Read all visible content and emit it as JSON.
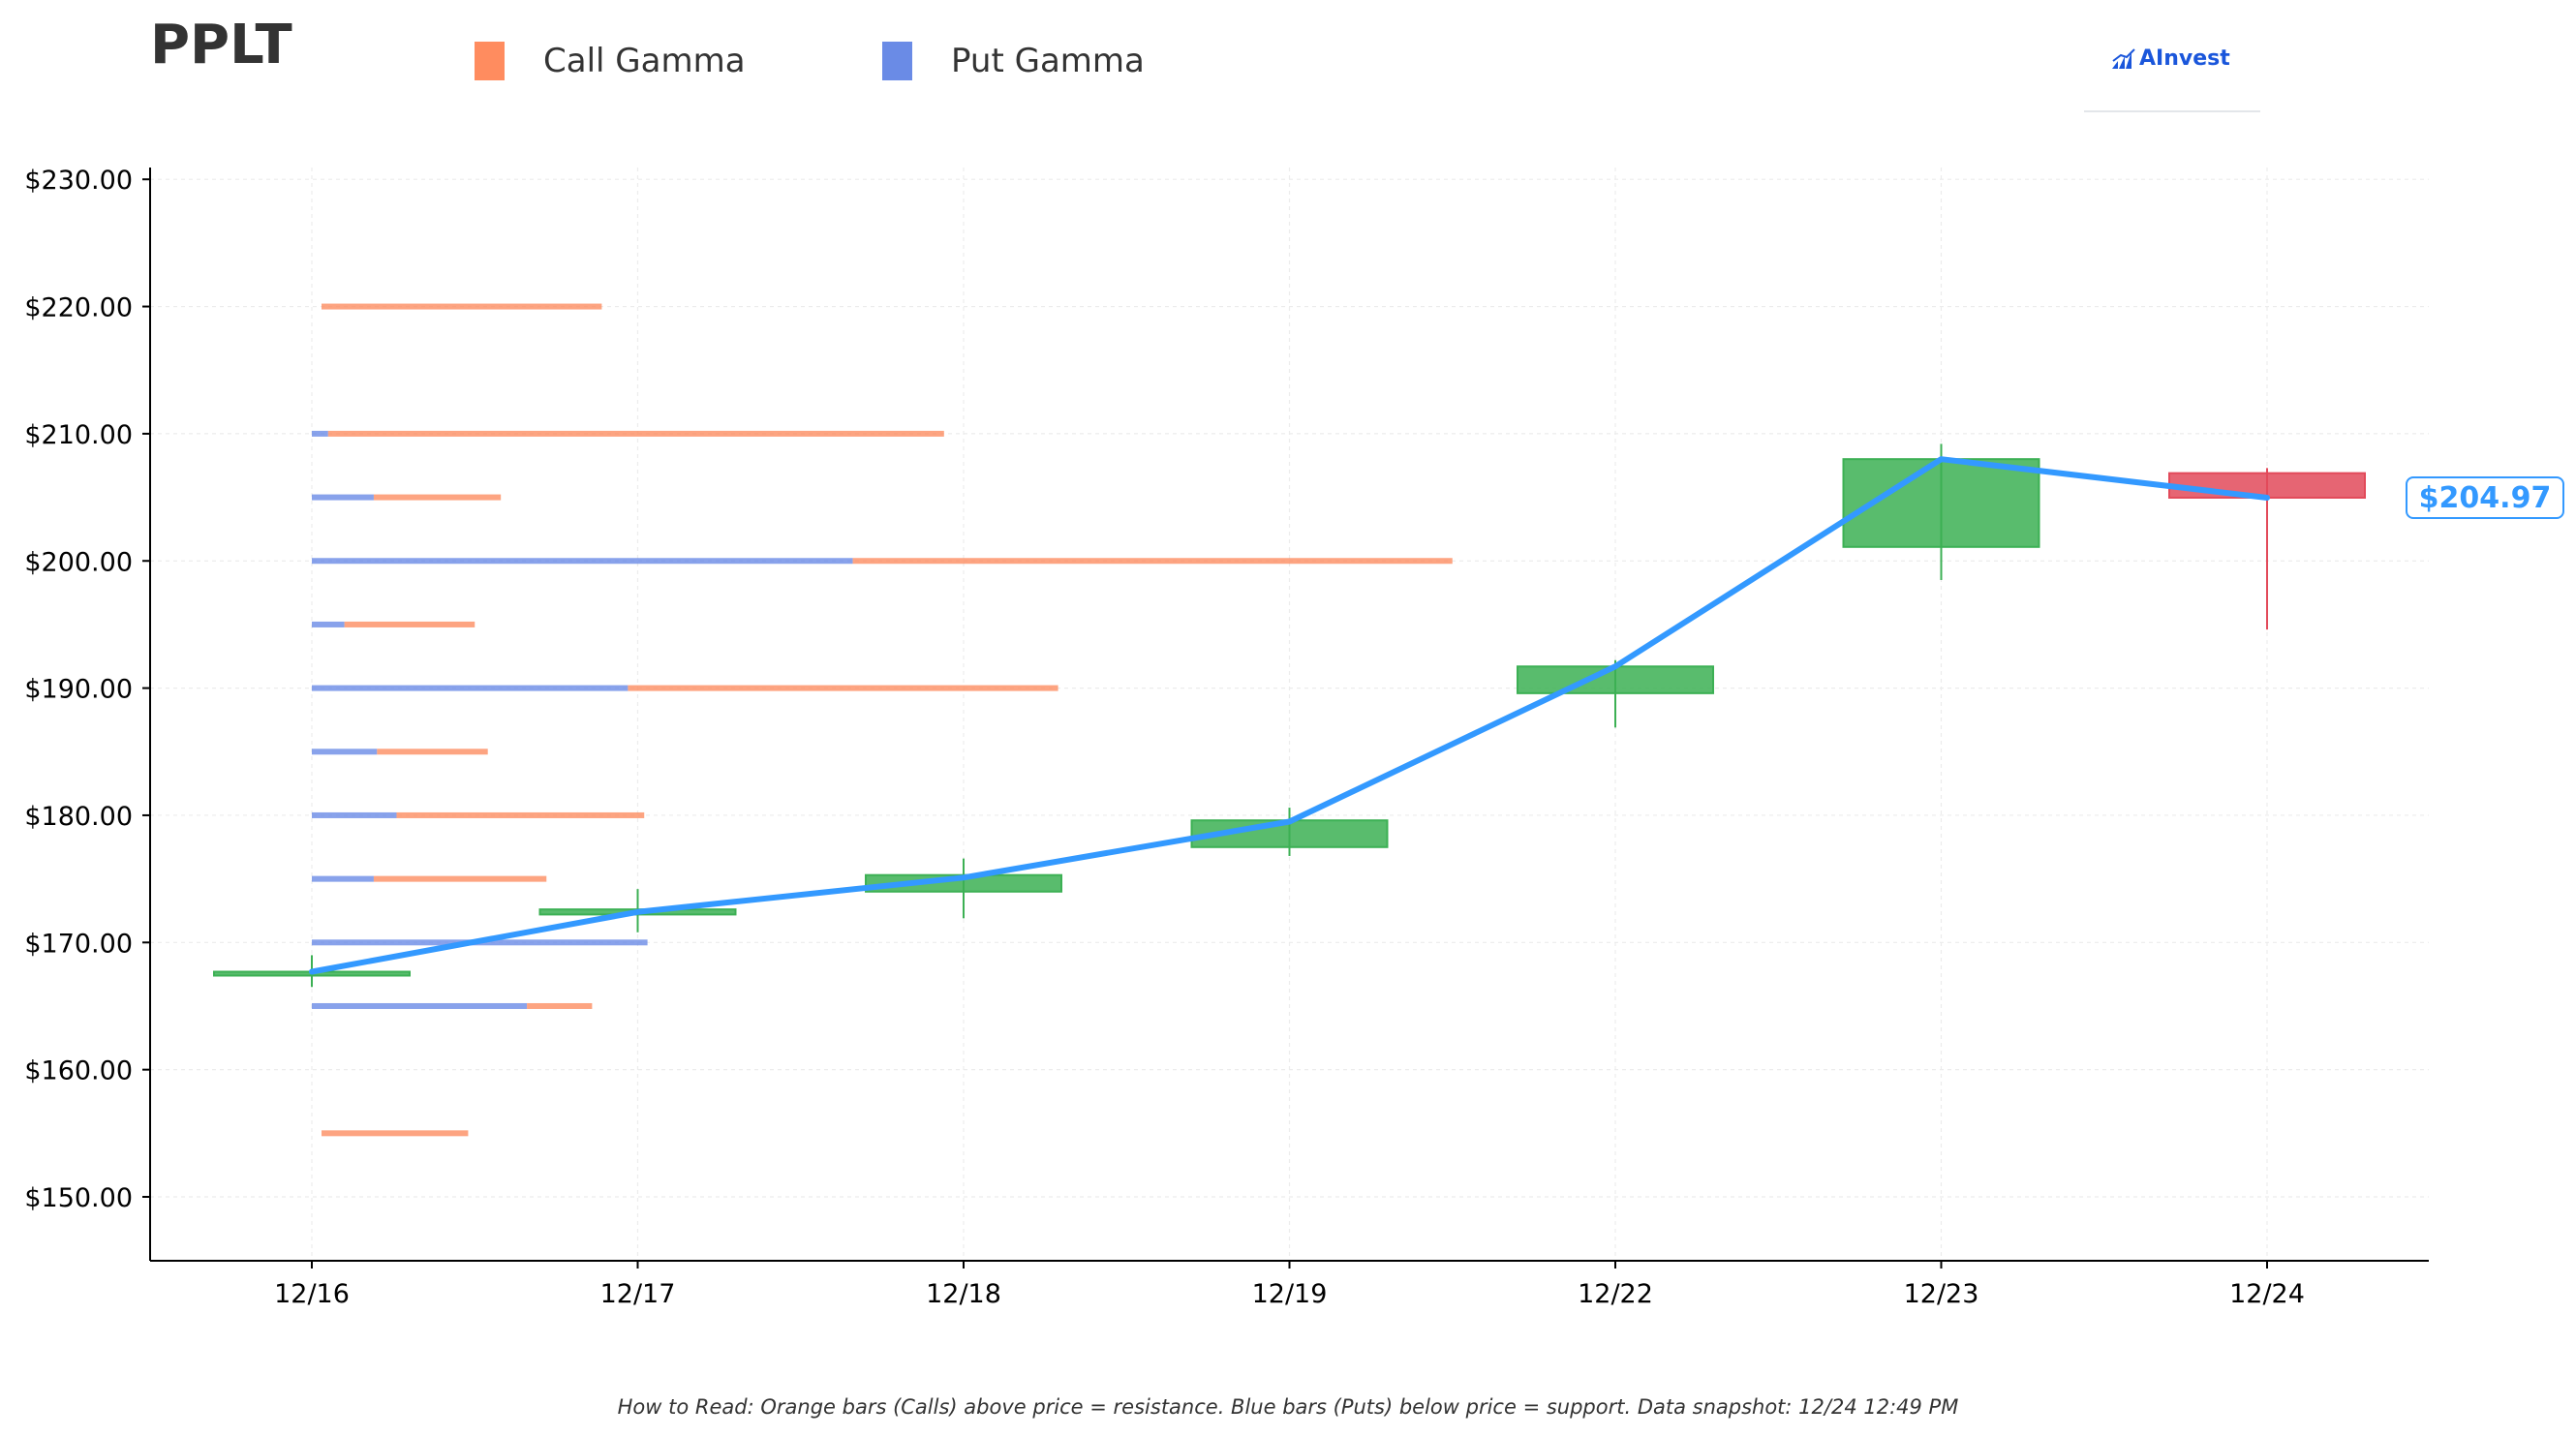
{
  "header": {
    "ticker": "PPLT",
    "legend": [
      {
        "label": "Call Gamma",
        "color": "#ff8c5f"
      },
      {
        "label": "Put Gamma",
        "color": "#6a8be6"
      }
    ],
    "logo_text": "AInvest",
    "logo_icon": "ainvest-logo-icon"
  },
  "colors": {
    "call": "#fc8d62",
    "put": "#6a8be6",
    "up": "#3cb054",
    "down": "#e24a5a",
    "price_line": "#3399ff"
  },
  "footnote": "How to Read: Orange bars (Calls) above price = resistance. Blue bars (Puts) below price = support. Data snapshot: 12/24 12:49 PM",
  "chart_data": {
    "type": "candlestick",
    "title": "PPLT",
    "xlabel": "",
    "ylabel": "",
    "ylim": [
      145,
      230
    ],
    "yticks": [
      150,
      160,
      170,
      180,
      190,
      200,
      210,
      220,
      230
    ],
    "ytick_labels": [
      "$150.00",
      "$160.00",
      "$170.00",
      "$180.00",
      "$190.00",
      "$200.00",
      "$210.00",
      "$220.00",
      "$230.00"
    ],
    "categories": [
      "12/16",
      "12/17",
      "12/18",
      "12/19",
      "12/22",
      "12/23",
      "12/24"
    ],
    "candles": [
      {
        "date": "12/16",
        "open": 167.5,
        "close": 167.7,
        "high": 169.0,
        "low": 166.5
      },
      {
        "date": "12/17",
        "open": 172.2,
        "close": 172.6,
        "high": 174.2,
        "low": 170.8
      },
      {
        "date": "12/18",
        "open": 174.0,
        "close": 175.3,
        "high": 176.6,
        "low": 171.9
      },
      {
        "date": "12/19",
        "open": 177.5,
        "close": 179.6,
        "high": 180.6,
        "low": 176.8
      },
      {
        "date": "12/22",
        "open": 189.6,
        "close": 191.7,
        "high": 192.2,
        "low": 186.9
      },
      {
        "date": "12/23",
        "open": 201.1,
        "close": 208.0,
        "high": 209.2,
        "low": 198.5
      },
      {
        "date": "12/24",
        "open": 206.9,
        "close": 204.97,
        "high": 207.3,
        "low": 194.6
      }
    ],
    "price_line": {
      "name": "",
      "values": [
        167.7,
        172.4,
        175.1,
        179.5,
        191.7,
        208.0,
        204.97
      ]
    },
    "last_price_label": "$204.97",
    "gamma_levels": {
      "x_unit": "category width",
      "strikes": [
        155,
        165,
        170,
        175,
        180,
        185,
        190,
        195,
        200,
        205,
        210,
        220
      ],
      "put": [
        0.0,
        0.66,
        1.03,
        0.19,
        0.26,
        0.2,
        0.97,
        0.1,
        1.66,
        0.19,
        0.05,
        0.0
      ],
      "call": [
        0.45,
        0.2,
        0.0,
        0.53,
        0.76,
        0.34,
        1.32,
        0.4,
        1.84,
        0.39,
        1.89,
        0.86
      ]
    },
    "grid": true,
    "legend_position": "top-left"
  }
}
